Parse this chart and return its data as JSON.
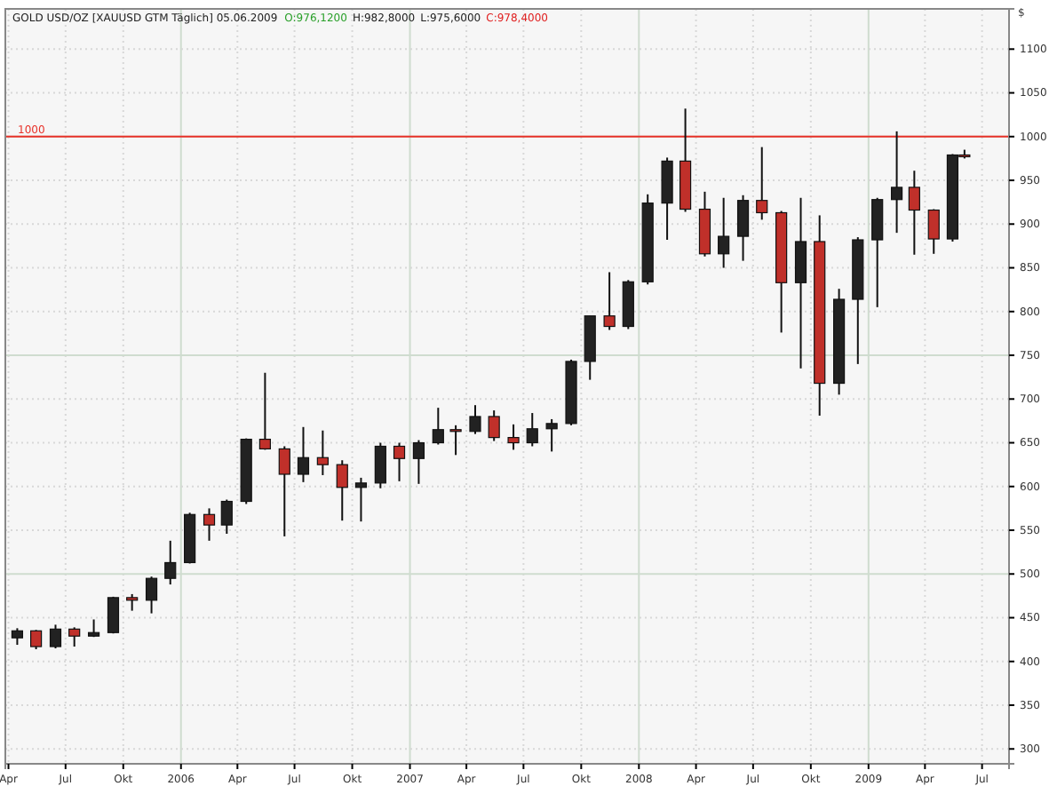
{
  "chart_data": {
    "type": "candlestick",
    "title": "GOLD USD/OZ [XAUUSD GTM  Täglich] 05.06.2009",
    "ylabel": "$",
    "annotations": [
      "O:976,1200",
      "H:982,8000",
      "L:975,6000",
      "C:978,4000"
    ],
    "x": [
      "2005-04-15",
      "2005-05-15",
      "2005-06-15",
      "2005-07-15",
      "2005-08-15",
      "2005-09-15",
      "2005-10-15",
      "2005-11-15",
      "2005-12-15",
      "2006-01-15",
      "2006-02-15",
      "2006-03-15",
      "2006-04-15",
      "2006-05-15",
      "2006-06-15",
      "2006-07-15",
      "2006-08-15",
      "2006-09-15",
      "2006-10-15",
      "2006-11-15",
      "2006-12-15",
      "2007-01-15",
      "2007-02-15",
      "2007-03-15",
      "2007-04-15",
      "2007-05-15",
      "2007-06-15",
      "2007-07-15",
      "2007-08-15",
      "2007-09-15",
      "2007-10-15",
      "2007-11-15",
      "2007-12-15",
      "2008-01-15",
      "2008-02-15",
      "2008-03-15",
      "2008-04-15",
      "2008-05-15",
      "2008-06-15",
      "2008-07-15",
      "2008-08-15",
      "2008-09-15",
      "2008-10-15",
      "2008-11-15",
      "2008-12-15",
      "2009-01-15",
      "2009-02-15",
      "2009-03-15",
      "2009-04-15",
      "2009-05-15",
      "2009-06-03"
    ],
    "ohlc": [
      [
        427,
        438,
        419,
        435
      ],
      [
        435,
        436,
        414,
        417
      ],
      [
        417,
        442,
        415,
        437
      ],
      [
        437,
        439,
        417,
        429
      ],
      [
        429,
        448,
        428,
        433
      ],
      [
        433,
        474,
        432,
        473
      ],
      [
        473,
        477,
        458,
        470
      ],
      [
        470,
        497,
        455,
        495
      ],
      [
        495,
        538,
        488,
        513
      ],
      [
        513,
        570,
        512,
        568
      ],
      [
        568,
        575,
        538,
        556
      ],
      [
        556,
        585,
        546,
        583
      ],
      [
        583,
        655,
        580,
        654
      ],
      [
        654,
        730,
        642,
        643
      ],
      [
        643,
        646,
        543,
        614
      ],
      [
        614,
        668,
        605,
        633
      ],
      [
        633,
        664,
        613,
        625
      ],
      [
        625,
        630,
        561,
        599
      ],
      [
        599,
        610,
        560,
        604
      ],
      [
        604,
        650,
        598,
        646
      ],
      [
        646,
        650,
        606,
        632
      ],
      [
        632,
        653,
        603,
        650
      ],
      [
        650,
        690,
        648,
        665
      ],
      [
        665,
        670,
        636,
        663
      ],
      [
        663,
        693,
        660,
        680
      ],
      [
        680,
        687,
        652,
        656
      ],
      [
        656,
        671,
        642,
        650
      ],
      [
        650,
        684,
        646,
        666
      ],
      [
        666,
        677,
        640,
        672
      ],
      [
        672,
        745,
        670,
        743
      ],
      [
        743,
        795,
        722,
        795
      ],
      [
        795,
        845,
        779,
        783
      ],
      [
        783,
        836,
        780,
        834
      ],
      [
        834,
        934,
        831,
        924
      ],
      [
        924,
        976,
        882,
        972
      ],
      [
        972,
        1032,
        914,
        917
      ],
      [
        917,
        937,
        863,
        866
      ],
      [
        866,
        930,
        850,
        886
      ],
      [
        886,
        933,
        858,
        927
      ],
      [
        927,
        988,
        905,
        913
      ],
      [
        913,
        915,
        776,
        833
      ],
      [
        833,
        930,
        735,
        880
      ],
      [
        880,
        910,
        681,
        718
      ],
      [
        718,
        826,
        705,
        814
      ],
      [
        814,
        885,
        740,
        882
      ],
      [
        882,
        930,
        805,
        928
      ],
      [
        928,
        1006,
        890,
        942
      ],
      [
        942,
        961,
        865,
        916
      ],
      [
        916,
        917,
        866,
        883
      ],
      [
        883,
        980,
        880,
        979
      ],
      [
        979,
        985,
        975,
        978
      ]
    ],
    "ylim": [
      283,
      1146
    ],
    "yticks": [
      300,
      350,
      400,
      450,
      500,
      550,
      600,
      650,
      700,
      750,
      800,
      850,
      900,
      950,
      1000,
      1050,
      1100
    ],
    "xlim": [
      "2005-03-27",
      "2009-08-13"
    ],
    "xticks": [
      {
        "value": "2005-04-01",
        "label": "Apr"
      },
      {
        "value": "2005-07-01",
        "label": "Jul"
      },
      {
        "value": "2005-10-01",
        "label": "Okt"
      },
      {
        "value": "2006-01-01",
        "label": "2006"
      },
      {
        "value": "2006-04-01",
        "label": "Apr"
      },
      {
        "value": "2006-07-01",
        "label": "Jul"
      },
      {
        "value": "2006-10-01",
        "label": "Okt"
      },
      {
        "value": "2007-01-01",
        "label": "2007"
      },
      {
        "value": "2007-04-01",
        "label": "Apr"
      },
      {
        "value": "2007-07-01",
        "label": "Jul"
      },
      {
        "value": "2007-10-01",
        "label": "Okt"
      },
      {
        "value": "2008-01-01",
        "label": "2008"
      },
      {
        "value": "2008-04-01",
        "label": "Apr"
      },
      {
        "value": "2008-07-01",
        "label": "Jul"
      },
      {
        "value": "2008-10-01",
        "label": "Okt"
      },
      {
        "value": "2009-01-01",
        "label": "2009"
      },
      {
        "value": "2009-04-01",
        "label": "Apr"
      },
      {
        "value": "2009-07-01",
        "label": "Jul"
      }
    ],
    "ref_lines": [
      {
        "axis": "y",
        "value": 1000,
        "label": "1000",
        "color": "#e8322a"
      }
    ],
    "grid": true
  }
}
